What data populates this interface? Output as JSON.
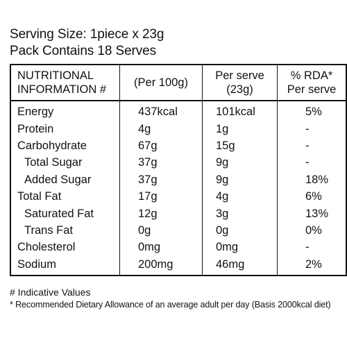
{
  "header": {
    "serving_size": "Serving Size: 1piece x 23g",
    "pack_contains": "Pack Contains 18 Serves"
  },
  "table": {
    "columns": [
      {
        "line1": "NUTRITIONAL",
        "line2": "INFORMATION #"
      },
      {
        "line1": "(Per 100g)",
        "line2": ""
      },
      {
        "line1": "Per serve",
        "line2": "(23g)"
      },
      {
        "line1": "% RDA*",
        "line2": "Per serve"
      }
    ],
    "rows": [
      {
        "nutrient": "Energy",
        "per_100g": "437kcal",
        "per_serve": "101kcal",
        "rda": "5%"
      },
      {
        "nutrient": "Protein",
        "per_100g": "4g",
        "per_serve": "1g",
        "rda": "-"
      },
      {
        "nutrient": "Carbohydrate",
        "per_100g": "67g",
        "per_serve": "15g",
        "rda": "-"
      },
      {
        "nutrient": "Total Sugar",
        "per_100g": "37g",
        "per_serve": "9g",
        "rda": "-"
      },
      {
        "nutrient": "Added Sugar",
        "per_100g": "37g",
        "per_serve": "9g",
        "rda": "18%"
      },
      {
        "nutrient": "Total Fat",
        "per_100g": "17g",
        "per_serve": "4g",
        "rda": "6%"
      },
      {
        "nutrient": "Saturated Fat",
        "per_100g": "12g",
        "per_serve": "3g",
        "rda": "13%"
      },
      {
        "nutrient": "Trans Fat",
        "per_100g": "0g",
        "per_serve": "0g",
        "rda": "0%"
      },
      {
        "nutrient": "Cholesterol",
        "per_100g": "0mg",
        "per_serve": "0mg",
        "rda": "-"
      },
      {
        "nutrient": "Sodium",
        "per_100g": "200mg",
        "per_serve": "46mg",
        "rda": "2%"
      }
    ]
  },
  "footnotes": {
    "indicative": "# Indicative Values",
    "rda_note": "* Recommended Dietary Allowance of an average adult per day (Basis 2000kcal diet)"
  }
}
